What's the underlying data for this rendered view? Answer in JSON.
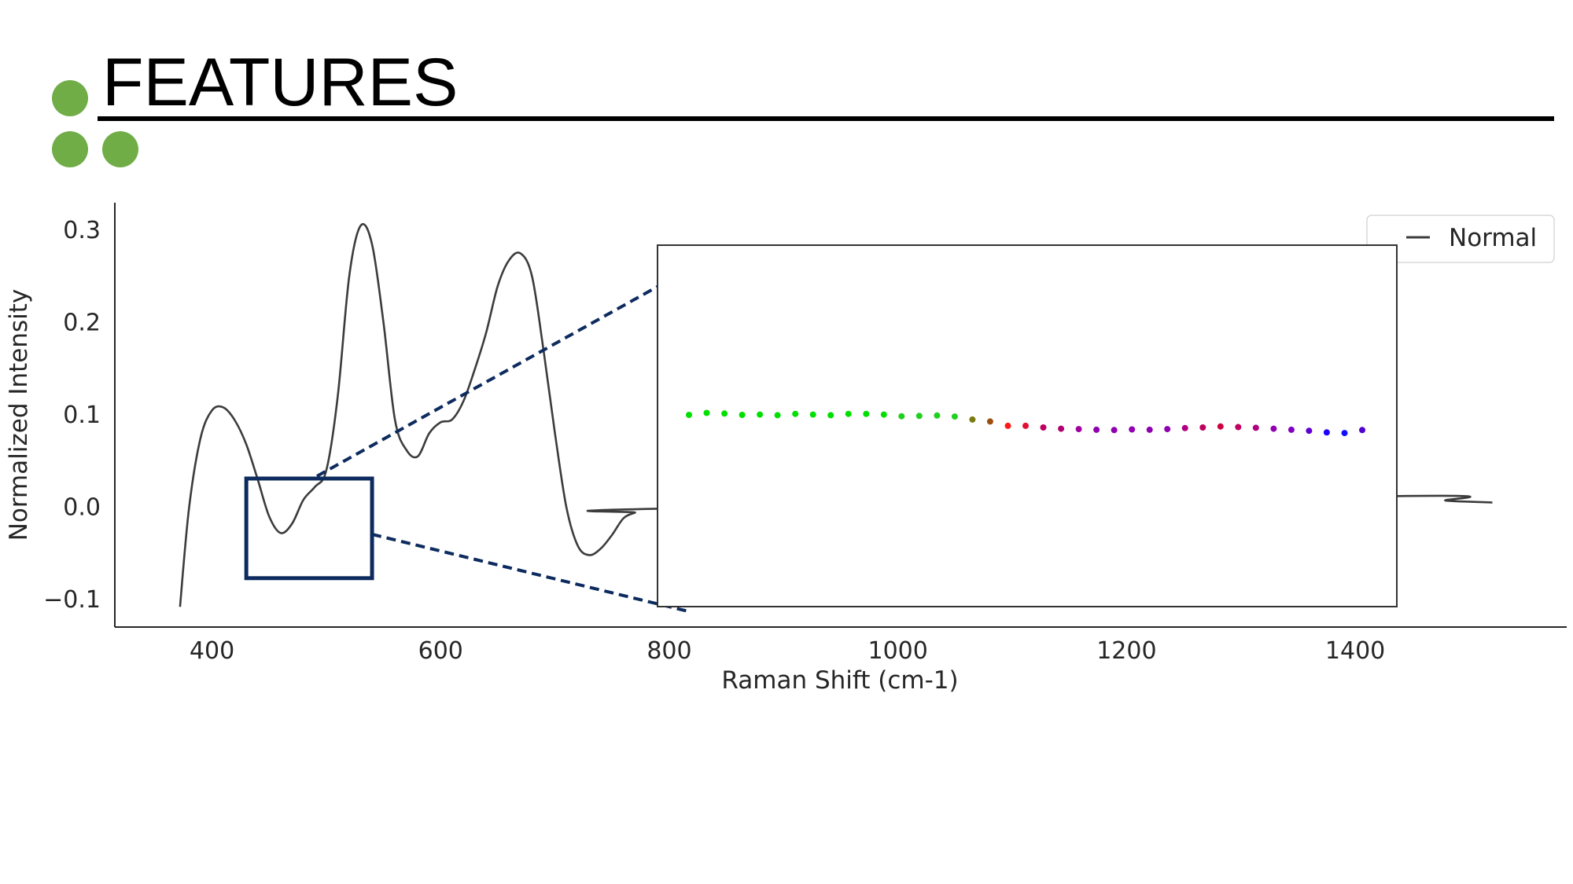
{
  "slide": {
    "title": "FEATURES",
    "accent_color": "#70ad47"
  },
  "chart_data": {
    "type": "line",
    "xlabel": "Raman Shift (cm-1)",
    "ylabel": "Normalized Intensity",
    "xlim": [
      315,
      1585
    ],
    "ylim": [
      -0.13,
      0.33
    ],
    "xticks": [
      400,
      600,
      800,
      1000,
      1200,
      1400
    ],
    "xtick_labels": [
      "400",
      "600",
      "800",
      "1000",
      "1200",
      "1400"
    ],
    "yticks": [
      -0.1,
      0.0,
      0.1,
      0.2,
      0.3
    ],
    "ytick_labels": [
      "−0.1",
      "0.0",
      "0.1",
      "0.2",
      "0.3"
    ],
    "grid": false,
    "legend": {
      "placement": "top-right",
      "entries": [
        "Normal"
      ]
    },
    "series": [
      {
        "name": "Normal",
        "color": "#3c3c3c",
        "x": [
          372,
          380,
          390,
          400,
          410,
          420,
          430,
          440,
          450,
          460,
          470,
          480,
          490,
          500,
          510,
          520,
          530,
          540,
          550,
          560,
          570,
          580,
          590,
          600,
          610,
          620,
          630,
          640,
          650,
          660,
          670,
          680,
          690,
          700,
          710,
          720,
          730,
          740,
          750,
          760,
          770,
          780,
          1440,
          1480,
          1520
        ],
        "y": [
          -0.108,
          0.0,
          0.075,
          0.105,
          0.108,
          0.094,
          0.068,
          0.03,
          -0.01,
          -0.028,
          -0.018,
          0.008,
          0.022,
          0.04,
          0.12,
          0.25,
          0.305,
          0.285,
          0.2,
          0.095,
          0.062,
          0.055,
          0.08,
          0.092,
          0.095,
          0.115,
          0.15,
          0.19,
          0.24,
          0.268,
          0.275,
          0.25,
          0.17,
          0.08,
          0.0,
          -0.042,
          -0.052,
          -0.045,
          -0.03,
          -0.012,
          -0.006,
          -0.002,
          0.012,
          0.007,
          0.005
        ]
      }
    ],
    "zoom_inset": {
      "highlight_box": {
        "x_range": [
          430,
          540
        ],
        "y_range": [
          -0.077,
          0.031
        ]
      },
      "points": [
        {
          "v": 0.0,
          "color": "#00e000"
        },
        {
          "v": 0.006,
          "color": "#00e000"
        },
        {
          "v": 0.004,
          "color": "#00e000"
        },
        {
          "v": 0.0,
          "color": "#00e000"
        },
        {
          "v": 0.001,
          "color": "#00e000"
        },
        {
          "v": -0.001,
          "color": "#00e000"
        },
        {
          "v": 0.003,
          "color": "#00e000"
        },
        {
          "v": 0.001,
          "color": "#00e000"
        },
        {
          "v": -0.001,
          "color": "#00e000"
        },
        {
          "v": 0.003,
          "color": "#00e000"
        },
        {
          "v": 0.003,
          "color": "#00e000"
        },
        {
          "v": 0.001,
          "color": "#00e000"
        },
        {
          "v": -0.004,
          "color": "#20d020"
        },
        {
          "v": -0.003,
          "color": "#20d020"
        },
        {
          "v": -0.002,
          "color": "#20d020"
        },
        {
          "v": -0.005,
          "color": "#20d020"
        },
        {
          "v": -0.014,
          "color": "#7a7a10"
        },
        {
          "v": -0.02,
          "color": "#9a5010"
        },
        {
          "v": -0.033,
          "color": "#ff1a1a"
        },
        {
          "v": -0.033,
          "color": "#e01030"
        },
        {
          "v": -0.038,
          "color": "#c00060"
        },
        {
          "v": -0.042,
          "color": "#b00070"
        },
        {
          "v": -0.043,
          "color": "#a000a0"
        },
        {
          "v": -0.045,
          "color": "#9000b0"
        },
        {
          "v": -0.046,
          "color": "#9000b0"
        },
        {
          "v": -0.044,
          "color": "#9000b0"
        },
        {
          "v": -0.045,
          "color": "#9000b0"
        },
        {
          "v": -0.043,
          "color": "#9000b0"
        },
        {
          "v": -0.04,
          "color": "#b00080"
        },
        {
          "v": -0.038,
          "color": "#c00060"
        },
        {
          "v": -0.035,
          "color": "#d00040"
        },
        {
          "v": -0.037,
          "color": "#c00060"
        },
        {
          "v": -0.039,
          "color": "#b00080"
        },
        {
          "v": -0.042,
          "color": "#9000b0"
        },
        {
          "v": -0.045,
          "color": "#8000c0"
        },
        {
          "v": -0.048,
          "color": "#6000d0"
        },
        {
          "v": -0.053,
          "color": "#2000ff"
        },
        {
          "v": -0.055,
          "color": "#1010ff"
        },
        {
          "v": -0.046,
          "color": "#5000d0"
        }
      ]
    }
  }
}
